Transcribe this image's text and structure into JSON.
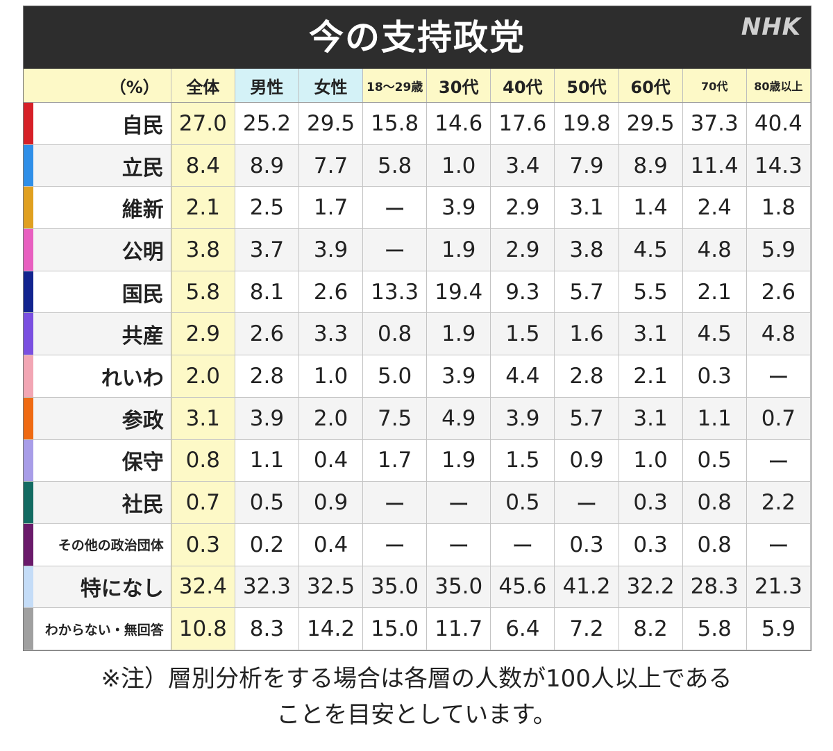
{
  "header": {
    "title": "今の支持政党",
    "logo": "NHK"
  },
  "chart_data": {
    "type": "table",
    "title": "今の支持政党",
    "columns": [
      "（%）",
      "全体",
      "男性",
      "女性",
      "18〜29歳",
      "30代",
      "40代",
      "50代",
      "60代",
      "70代",
      "80歳以上"
    ],
    "rows": [
      {
        "party": "自民",
        "color": "#d62027",
        "values": [
          "27.0",
          "25.2",
          "29.5",
          "15.8",
          "14.6",
          "17.6",
          "19.8",
          "29.5",
          "37.3",
          "40.4"
        ]
      },
      {
        "party": "立民",
        "color": "#2f8fe8",
        "values": [
          "8.4",
          "8.9",
          "7.7",
          "5.8",
          "1.0",
          "3.4",
          "7.9",
          "8.9",
          "11.4",
          "14.3"
        ]
      },
      {
        "party": "維新",
        "color": "#e0a020",
        "values": [
          "2.1",
          "2.5",
          "1.7",
          "ー",
          "3.9",
          "2.9",
          "3.1",
          "1.4",
          "2.4",
          "1.8"
        ]
      },
      {
        "party": "公明",
        "color": "#e85fc0",
        "values": [
          "3.8",
          "3.7",
          "3.9",
          "ー",
          "1.9",
          "2.9",
          "3.8",
          "4.5",
          "4.8",
          "5.9"
        ]
      },
      {
        "party": "国民",
        "color": "#12248f",
        "values": [
          "5.8",
          "8.1",
          "2.6",
          "13.3",
          "19.4",
          "9.3",
          "5.7",
          "5.5",
          "2.1",
          "2.6"
        ]
      },
      {
        "party": "共産",
        "color": "#7a4fe0",
        "values": [
          "2.9",
          "2.6",
          "3.3",
          "0.8",
          "1.9",
          "1.5",
          "1.6",
          "3.1",
          "4.5",
          "4.8"
        ]
      },
      {
        "party": "れいわ",
        "color": "#f2a6b4",
        "values": [
          "2.0",
          "2.8",
          "1.0",
          "5.0",
          "3.9",
          "4.4",
          "2.8",
          "2.1",
          "0.3",
          "ー"
        ]
      },
      {
        "party": "参政",
        "color": "#ef6a12",
        "values": [
          "3.1",
          "3.9",
          "2.0",
          "7.5",
          "4.9",
          "3.9",
          "5.7",
          "3.1",
          "1.1",
          "0.7"
        ]
      },
      {
        "party": "保守",
        "color": "#a89de8",
        "values": [
          "0.8",
          "1.1",
          "0.4",
          "1.7",
          "1.9",
          "1.5",
          "0.9",
          "1.0",
          "0.5",
          "ー"
        ]
      },
      {
        "party": "社民",
        "color": "#136b62",
        "values": [
          "0.7",
          "0.5",
          "0.9",
          "ー",
          "ー",
          "0.5",
          "ー",
          "0.3",
          "0.8",
          "2.2"
        ]
      },
      {
        "party": "その他の政治団体",
        "color": "#6a1a6a",
        "values": [
          "0.3",
          "0.2",
          "0.4",
          "ー",
          "ー",
          "ー",
          "0.3",
          "0.3",
          "0.8",
          "ー"
        ]
      },
      {
        "party": "特になし",
        "color": "#c4dcf7",
        "values": [
          "32.4",
          "32.3",
          "32.5",
          "35.0",
          "35.0",
          "45.6",
          "41.2",
          "32.2",
          "28.3",
          "21.3"
        ]
      },
      {
        "party": "わからない・無回答",
        "color": "#a0a0a0",
        "values": [
          "10.8",
          "8.3",
          "14.2",
          "15.0",
          "11.7",
          "6.4",
          "7.2",
          "8.2",
          "5.8",
          "5.9"
        ]
      }
    ]
  },
  "note": {
    "line1": "※注）層別分析をする場合は各層の人数が100人以上である",
    "line2": "ことを目安としています。"
  }
}
